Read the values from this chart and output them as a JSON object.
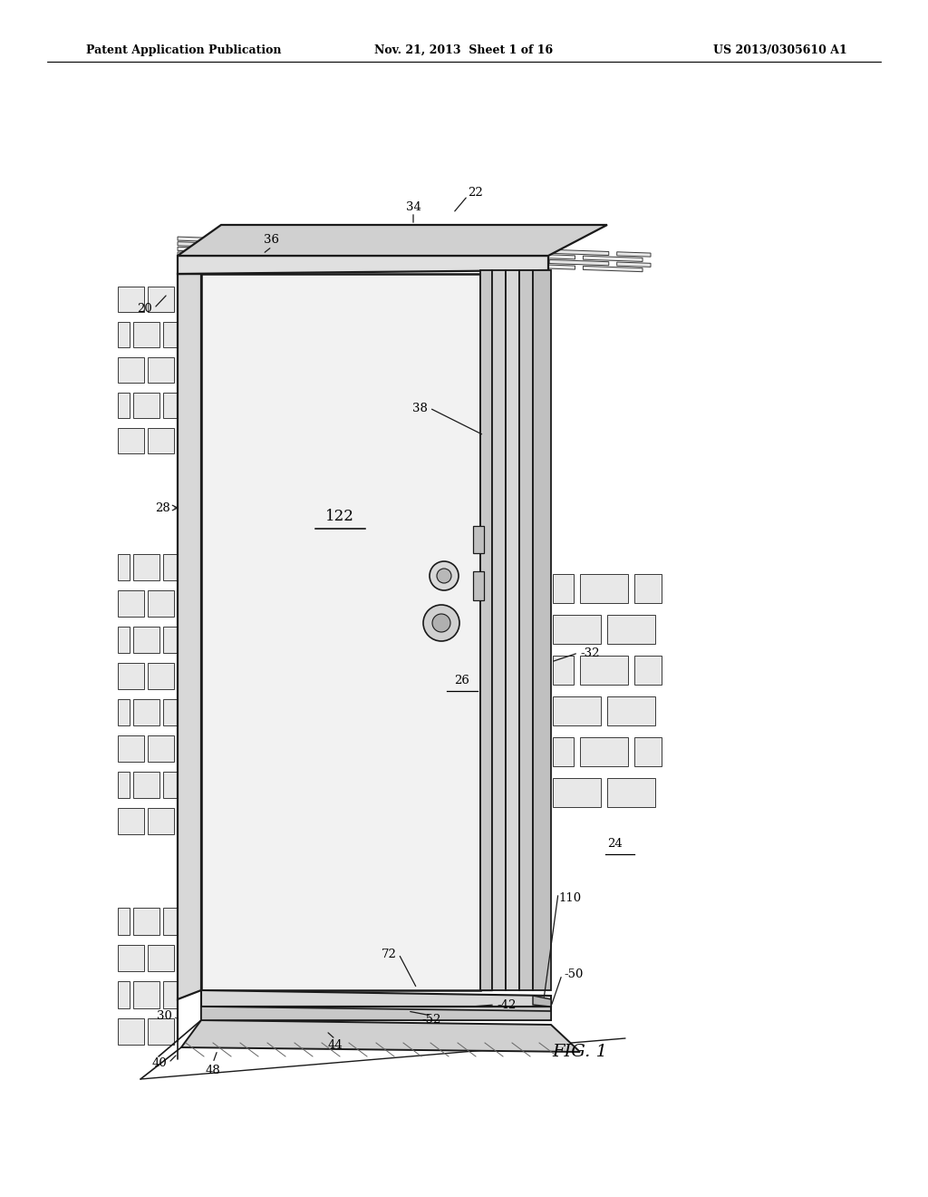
{
  "title_left": "Patent Application Publication",
  "title_center": "Nov. 21, 2013  Sheet 1 of 16",
  "title_right": "US 2013/0305610 A1",
  "fig_label": "FIG. 1",
  "background_color": "#ffffff",
  "line_color": "#000000"
}
